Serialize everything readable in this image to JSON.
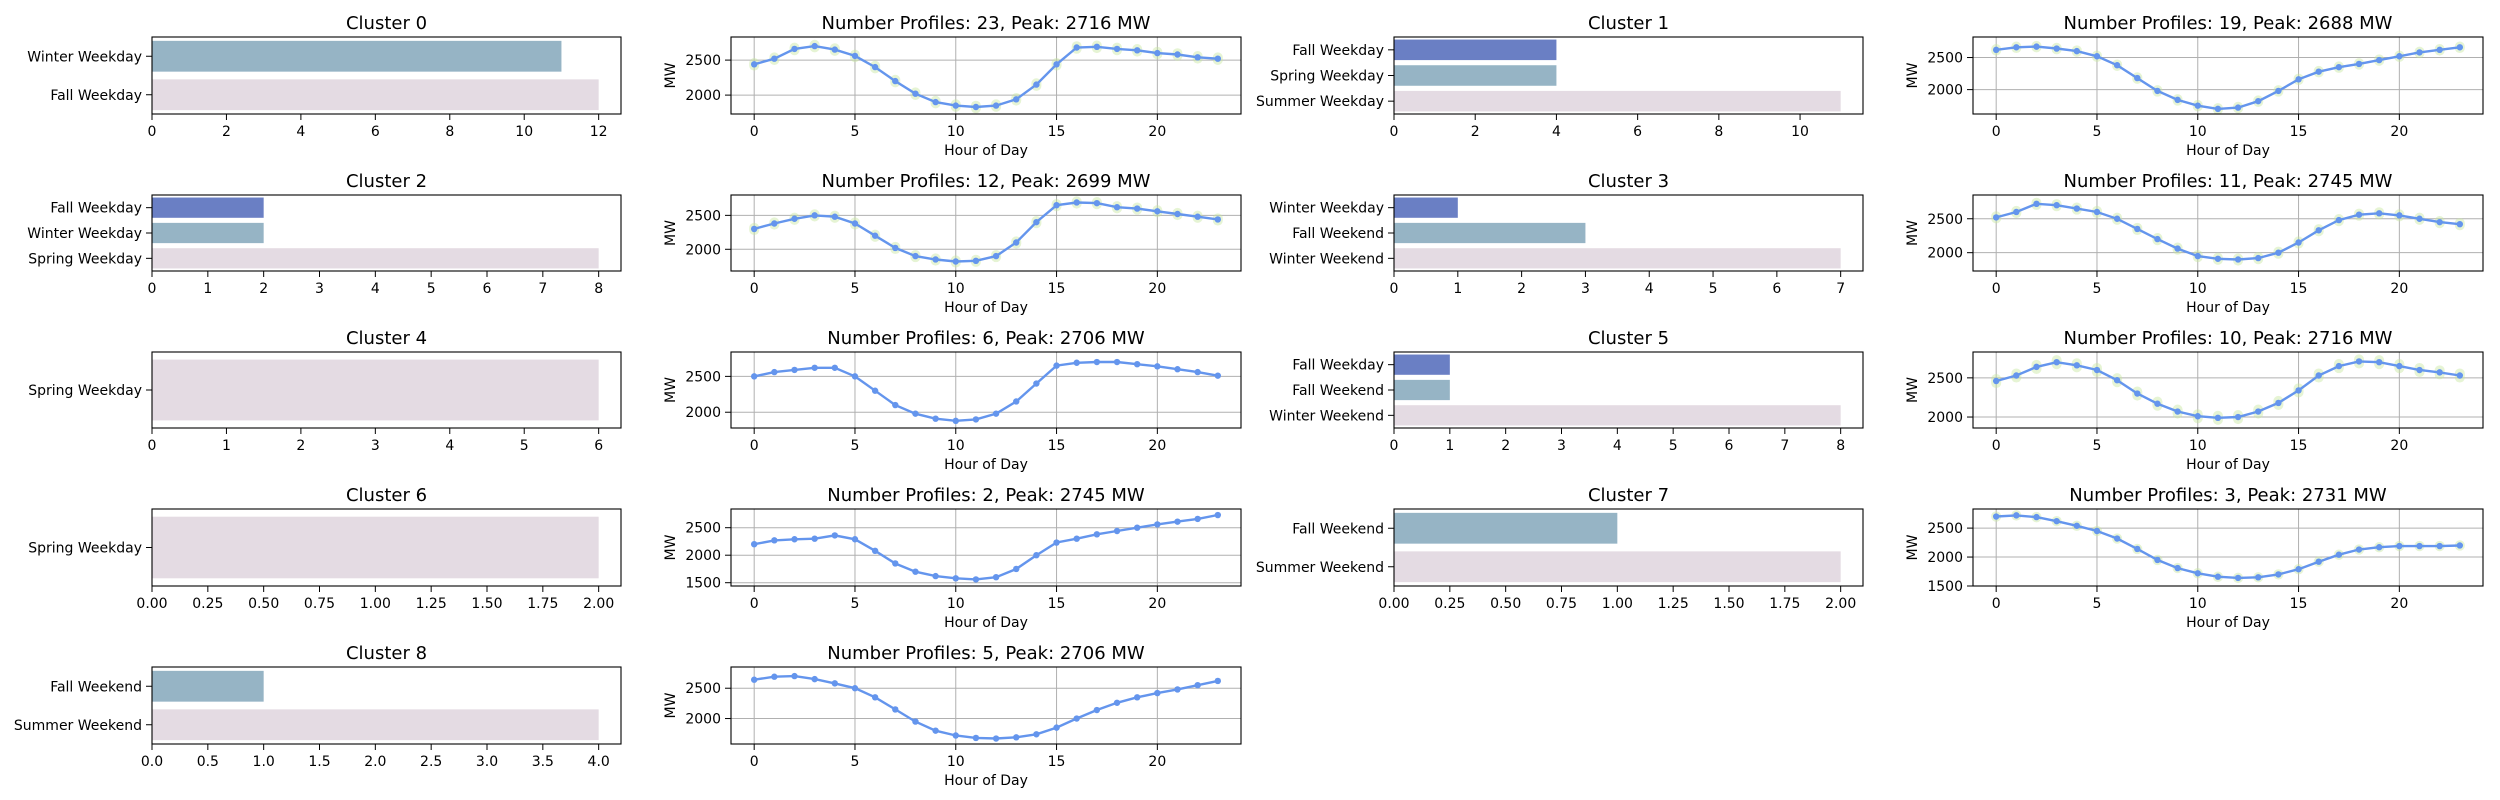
{
  "chart_data": [
    {
      "panel": "cluster",
      "type": "bar",
      "orientation": "horizontal",
      "title": "Cluster 0",
      "categories": [
        "Winter Weekday",
        "Fall Weekday"
      ],
      "values": [
        11,
        12
      ],
      "colors": [
        "#96b4c5",
        "#e4dbe3"
      ],
      "xlim": [
        0,
        12.6
      ],
      "xticks": [
        0,
        2,
        4,
        6,
        8,
        10,
        12
      ],
      "xticklabels": [
        "0",
        "2",
        "4",
        "6",
        "8",
        "10",
        "12"
      ]
    },
    {
      "panel": "profile",
      "type": "line",
      "title": "Number Profiles: 23, Peak: 2716 MW",
      "xlabel": "Hour of Day",
      "ylabel": "MW",
      "xlim": [
        -1.15,
        24.15
      ],
      "ylim": [
        1730,
        2830
      ],
      "yticks": [
        2000,
        2500
      ],
      "yticklabels": [
        "2000",
        "2500"
      ],
      "xticks": [
        0,
        5,
        10,
        15,
        20
      ],
      "xticklabels": [
        "0",
        "5",
        "10",
        "15",
        "20"
      ],
      "grid": true,
      "x": [
        0,
        1,
        2,
        3,
        4,
        5,
        6,
        7,
        8,
        9,
        10,
        11,
        12,
        13,
        14,
        15,
        16,
        17,
        18,
        19,
        20,
        21,
        22,
        23
      ],
      "values": [
        2440,
        2520,
        2660,
        2700,
        2650,
        2560,
        2400,
        2200,
        2020,
        1900,
        1850,
        1830,
        1850,
        1940,
        2150,
        2440,
        2680,
        2690,
        2660,
        2640,
        2600,
        2580,
        2540,
        2520
      ],
      "band": true
    },
    {
      "panel": "cluster",
      "type": "bar",
      "orientation": "horizontal",
      "title": "Cluster 1",
      "categories": [
        "Fall Weekday",
        "Spring Weekday",
        "Summer Weekday"
      ],
      "values": [
        4,
        4,
        11
      ],
      "colors": [
        "#6a7fc4",
        "#96b4c5",
        "#e4dbe3"
      ],
      "xlim": [
        0,
        11.55
      ],
      "xticks": [
        0,
        2,
        4,
        6,
        8,
        10
      ],
      "xticklabels": [
        "0",
        "2",
        "4",
        "6",
        "8",
        "10"
      ]
    },
    {
      "panel": "profile",
      "type": "line",
      "title": "Number Profiles: 19, Peak: 2688 MW",
      "xlabel": "Hour of Day",
      "ylabel": "MW",
      "xlim": [
        -1.15,
        24.15
      ],
      "ylim": [
        1620,
        2820
      ],
      "yticks": [
        2000,
        2500
      ],
      "yticklabels": [
        "2000",
        "2500"
      ],
      "xticks": [
        0,
        5,
        10,
        15,
        20
      ],
      "xticklabels": [
        "0",
        "5",
        "10",
        "15",
        "20"
      ],
      "grid": true,
      "x": [
        0,
        1,
        2,
        3,
        4,
        5,
        6,
        7,
        8,
        9,
        10,
        11,
        12,
        13,
        14,
        15,
        16,
        17,
        18,
        19,
        20,
        21,
        22,
        23
      ],
      "values": [
        2620,
        2660,
        2670,
        2640,
        2600,
        2520,
        2380,
        2180,
        1980,
        1840,
        1750,
        1700,
        1720,
        1820,
        1980,
        2160,
        2280,
        2350,
        2400,
        2460,
        2520,
        2580,
        2620,
        2660
      ],
      "band": true
    },
    {
      "panel": "cluster",
      "type": "bar",
      "orientation": "horizontal",
      "title": "Cluster 2",
      "categories": [
        "Fall Weekday",
        "Winter Weekday",
        "Spring Weekday"
      ],
      "values": [
        2,
        2,
        8
      ],
      "colors": [
        "#6a7fc4",
        "#96b4c5",
        "#e4dbe3"
      ],
      "xlim": [
        0,
        8.4
      ],
      "xticks": [
        0,
        1,
        2,
        3,
        4,
        5,
        6,
        7,
        8
      ],
      "xticklabels": [
        "0",
        "1",
        "2",
        "3",
        "4",
        "5",
        "6",
        "7",
        "8"
      ]
    },
    {
      "panel": "profile",
      "type": "line",
      "title": "Number Profiles: 12, Peak: 2699 MW",
      "xlabel": "Hour of Day",
      "ylabel": "MW",
      "xlim": [
        -1.15,
        24.15
      ],
      "ylim": [
        1680,
        2800
      ],
      "yticks": [
        2000,
        2500
      ],
      "yticklabels": [
        "2000",
        "2500"
      ],
      "xticks": [
        0,
        5,
        10,
        15,
        20
      ],
      "xticklabels": [
        "0",
        "5",
        "10",
        "15",
        "20"
      ],
      "grid": true,
      "x": [
        0,
        1,
        2,
        3,
        4,
        5,
        6,
        7,
        8,
        9,
        10,
        11,
        12,
        13,
        14,
        15,
        16,
        17,
        18,
        19,
        20,
        21,
        22,
        23
      ],
      "values": [
        2300,
        2380,
        2450,
        2500,
        2480,
        2380,
        2200,
        2020,
        1900,
        1850,
        1820,
        1830,
        1900,
        2100,
        2400,
        2650,
        2690,
        2680,
        2620,
        2600,
        2560,
        2520,
        2480,
        2440
      ],
      "band": true
    },
    {
      "panel": "cluster",
      "type": "bar",
      "orientation": "horizontal",
      "title": "Cluster 3",
      "categories": [
        "Winter Weekday",
        "Fall Weekend",
        "Winter Weekend"
      ],
      "values": [
        1,
        3,
        7
      ],
      "colors": [
        "#6a7fc4",
        "#96b4c5",
        "#e4dbe3"
      ],
      "xlim": [
        0,
        7.35
      ],
      "xticks": [
        0,
        1,
        2,
        3,
        4,
        5,
        6,
        7
      ],
      "xticklabels": [
        "0",
        "1",
        "2",
        "3",
        "4",
        "5",
        "6",
        "7"
      ]
    },
    {
      "panel": "profile",
      "type": "line",
      "title": "Number Profiles: 11, Peak: 2745 MW",
      "xlabel": "Hour of Day",
      "ylabel": "MW",
      "xlim": [
        -1.15,
        24.15
      ],
      "ylim": [
        1730,
        2850
      ],
      "yticks": [
        2000,
        2500
      ],
      "yticklabels": [
        "2000",
        "2500"
      ],
      "xticks": [
        0,
        5,
        10,
        15,
        20
      ],
      "xticklabels": [
        "0",
        "5",
        "10",
        "15",
        "20"
      ],
      "grid": true,
      "x": [
        0,
        1,
        2,
        3,
        4,
        5,
        6,
        7,
        8,
        9,
        10,
        11,
        12,
        13,
        14,
        15,
        16,
        17,
        18,
        19,
        20,
        21,
        22,
        23
      ],
      "values": [
        2520,
        2600,
        2720,
        2700,
        2650,
        2600,
        2500,
        2350,
        2200,
        2060,
        1950,
        1910,
        1900,
        1920,
        2000,
        2150,
        2330,
        2480,
        2560,
        2580,
        2550,
        2500,
        2450,
        2420
      ],
      "band": true
    },
    {
      "panel": "cluster",
      "type": "bar",
      "orientation": "horizontal",
      "title": "Cluster 4",
      "categories": [
        "Spring Weekday"
      ],
      "values": [
        6
      ],
      "colors": [
        "#e4dbe3"
      ],
      "xlim": [
        0,
        6.3
      ],
      "xticks": [
        0,
        1,
        2,
        3,
        4,
        5,
        6
      ],
      "xticklabels": [
        "0",
        "1",
        "2",
        "3",
        "4",
        "5",
        "6"
      ]
    },
    {
      "panel": "profile",
      "type": "line",
      "title": "Number Profiles: 6, Peak: 2706 MW",
      "xlabel": "Hour of Day",
      "ylabel": "MW",
      "xlim": [
        -1.15,
        24.15
      ],
      "ylim": [
        1780,
        2840
      ],
      "yticks": [
        2000,
        2500
      ],
      "yticklabels": [
        "2000",
        "2500"
      ],
      "xticks": [
        0,
        5,
        10,
        15,
        20
      ],
      "xticklabels": [
        "0",
        "5",
        "10",
        "15",
        "20"
      ],
      "grid": true,
      "x": [
        0,
        1,
        2,
        3,
        4,
        5,
        6,
        7,
        8,
        9,
        10,
        11,
        12,
        13,
        14,
        15,
        16,
        17,
        18,
        19,
        20,
        21,
        22,
        23
      ],
      "values": [
        2500,
        2560,
        2590,
        2620,
        2620,
        2500,
        2300,
        2100,
        1980,
        1910,
        1880,
        1900,
        1980,
        2150,
        2400,
        2650,
        2690,
        2700,
        2700,
        2670,
        2640,
        2600,
        2560,
        2510
      ],
      "band": false
    },
    {
      "panel": "cluster",
      "type": "bar",
      "orientation": "horizontal",
      "title": "Cluster 5",
      "categories": [
        "Fall Weekday",
        "Fall Weekend",
        "Winter Weekend"
      ],
      "values": [
        1,
        1,
        8
      ],
      "colors": [
        "#6a7fc4",
        "#96b4c5",
        "#e4dbe3"
      ],
      "xlim": [
        0,
        8.4
      ],
      "xticks": [
        0,
        1,
        2,
        3,
        4,
        5,
        6,
        7,
        8
      ],
      "xticklabels": [
        "0",
        "1",
        "2",
        "3",
        "4",
        "5",
        "6",
        "7",
        "8"
      ]
    },
    {
      "panel": "profile",
      "type": "line",
      "title": "Number Profiles: 10, Peak: 2716 MW",
      "xlabel": "Hour of Day",
      "ylabel": "MW",
      "xlim": [
        -1.15,
        24.15
      ],
      "ylim": [
        1860,
        2830
      ],
      "yticks": [
        2000,
        2500
      ],
      "yticklabels": [
        "2000",
        "2500"
      ],
      "xticks": [
        0,
        5,
        10,
        15,
        20
      ],
      "xticklabels": [
        "0",
        "5",
        "10",
        "15",
        "20"
      ],
      "grid": true,
      "x": [
        0,
        1,
        2,
        3,
        4,
        5,
        6,
        7,
        8,
        9,
        10,
        11,
        12,
        13,
        14,
        15,
        16,
        17,
        18,
        19,
        20,
        21,
        22,
        23
      ],
      "values": [
        2460,
        2530,
        2640,
        2700,
        2660,
        2600,
        2470,
        2300,
        2170,
        2070,
        2010,
        1990,
        2000,
        2070,
        2180,
        2340,
        2530,
        2650,
        2710,
        2700,
        2650,
        2600,
        2570,
        2530
      ],
      "band": true
    },
    {
      "panel": "cluster",
      "type": "bar",
      "orientation": "horizontal",
      "title": "Cluster 6",
      "categories": [
        "Spring Weekday"
      ],
      "values": [
        2
      ],
      "colors": [
        "#e4dbe3"
      ],
      "xlim": [
        0,
        2.1
      ],
      "xticks": [
        0,
        0.25,
        0.5,
        0.75,
        1,
        1.25,
        1.5,
        1.75,
        2
      ],
      "xticklabels": [
        "0.00",
        "0.25",
        "0.50",
        "0.75",
        "1.00",
        "1.25",
        "1.50",
        "1.75",
        "2.00"
      ]
    },
    {
      "panel": "profile",
      "type": "line",
      "title": "Number Profiles: 2, Peak: 2745 MW",
      "xlabel": "Hour of Day",
      "ylabel": "MW",
      "xlim": [
        -1.15,
        24.15
      ],
      "ylim": [
        1440,
        2840
      ],
      "yticks": [
        1500,
        2000,
        2500
      ],
      "yticklabels": [
        "1500",
        "2000",
        "2500"
      ],
      "xticks": [
        0,
        5,
        10,
        15,
        20
      ],
      "xticklabels": [
        "0",
        "5",
        "10",
        "15",
        "20"
      ],
      "grid": true,
      "x": [
        0,
        1,
        2,
        3,
        4,
        5,
        6,
        7,
        8,
        9,
        10,
        11,
        12,
        13,
        14,
        15,
        16,
        17,
        18,
        19,
        20,
        21,
        22,
        23
      ],
      "values": [
        2200,
        2270,
        2290,
        2300,
        2360,
        2290,
        2080,
        1850,
        1700,
        1620,
        1580,
        1560,
        1600,
        1750,
        2000,
        2230,
        2300,
        2380,
        2440,
        2500,
        2560,
        2610,
        2660,
        2730
      ],
      "band": false
    },
    {
      "panel": "cluster",
      "type": "bar",
      "orientation": "horizontal",
      "title": "Cluster 7",
      "categories": [
        "Fall Weekend",
        "Summer Weekend"
      ],
      "values": [
        1,
        2
      ],
      "colors": [
        "#96b4c5",
        "#e4dbe3"
      ],
      "xlim": [
        0,
        2.1
      ],
      "xticks": [
        0,
        0.25,
        0.5,
        0.75,
        1,
        1.25,
        1.5,
        1.75,
        2
      ],
      "xticklabels": [
        "0.00",
        "0.25",
        "0.50",
        "0.75",
        "1.00",
        "1.25",
        "1.50",
        "1.75",
        "2.00"
      ]
    },
    {
      "panel": "profile",
      "type": "line",
      "title": "Number Profiles: 3, Peak: 2731 MW",
      "xlabel": "Hour of Day",
      "ylabel": "MW",
      "xlim": [
        -1.15,
        24.15
      ],
      "ylim": [
        1500,
        2830
      ],
      "yticks": [
        1500,
        2000,
        2500
      ],
      "yticklabels": [
        "1500",
        "2000",
        "2500"
      ],
      "xticks": [
        0,
        5,
        10,
        15,
        20
      ],
      "xticklabels": [
        "0",
        "5",
        "10",
        "15",
        "20"
      ],
      "grid": true,
      "x": [
        0,
        1,
        2,
        3,
        4,
        5,
        6,
        7,
        8,
        9,
        10,
        11,
        12,
        13,
        14,
        15,
        16,
        17,
        18,
        19,
        20,
        21,
        22,
        23
      ],
      "values": [
        2700,
        2720,
        2690,
        2620,
        2540,
        2450,
        2320,
        2140,
        1950,
        1810,
        1720,
        1660,
        1640,
        1650,
        1700,
        1790,
        1920,
        2040,
        2130,
        2170,
        2190,
        2190,
        2190,
        2200
      ],
      "band": true
    },
    {
      "panel": "cluster",
      "type": "bar",
      "orientation": "horizontal",
      "title": "Cluster 8",
      "categories": [
        "Fall Weekend",
        "Summer Weekend"
      ],
      "values": [
        1,
        4
      ],
      "colors": [
        "#96b4c5",
        "#e4dbe3"
      ],
      "xlim": [
        0,
        4.2
      ],
      "xticks": [
        0,
        0.5,
        1,
        1.5,
        2,
        2.5,
        3,
        3.5,
        4
      ],
      "xticklabels": [
        "0.0",
        "0.5",
        "1.0",
        "1.5",
        "2.0",
        "2.5",
        "3.0",
        "3.5",
        "4.0"
      ]
    },
    {
      "panel": "profile",
      "type": "line",
      "title": "Number Profiles: 5, Peak: 2706 MW",
      "xlabel": "Hour of Day",
      "ylabel": "MW",
      "xlim": [
        -1.15,
        24.15
      ],
      "ylim": [
        1580,
        2850
      ],
      "yticks": [
        2000,
        2500
      ],
      "yticklabels": [
        "2000",
        "2500"
      ],
      "xticks": [
        0,
        5,
        10,
        15,
        20
      ],
      "xticklabels": [
        "0",
        "5",
        "10",
        "15",
        "20"
      ],
      "grid": true,
      "x": [
        0,
        1,
        2,
        3,
        4,
        5,
        6,
        7,
        8,
        9,
        10,
        11,
        12,
        13,
        14,
        15,
        16,
        17,
        18,
        19,
        20,
        21,
        22,
        23
      ],
      "values": [
        2640,
        2690,
        2700,
        2650,
        2580,
        2500,
        2350,
        2150,
        1950,
        1800,
        1720,
        1680,
        1670,
        1690,
        1740,
        1850,
        2000,
        2140,
        2260,
        2350,
        2420,
        2480,
        2550,
        2620
      ],
      "band": false
    }
  ],
  "colors": {
    "line": "#6495ed",
    "band": "#c8e6a0"
  }
}
